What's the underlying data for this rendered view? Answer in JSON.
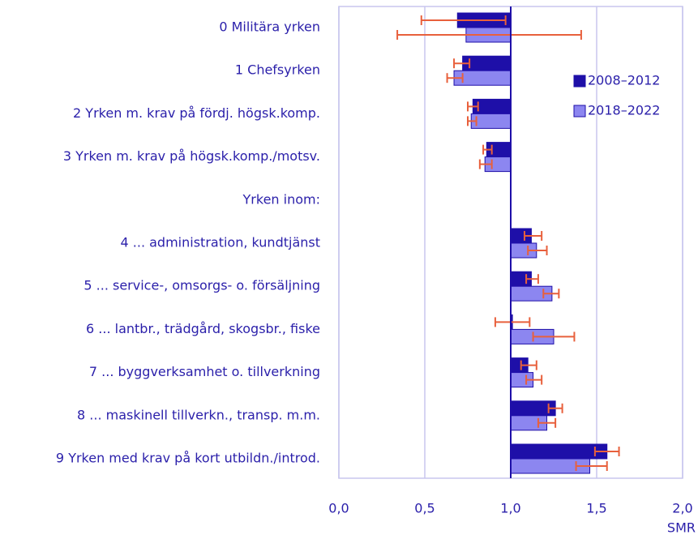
{
  "chart_data": {
    "type": "bar",
    "orientation": "horizontal",
    "base": 1,
    "x_label": "SMR",
    "categories": [
      "0 Militära yrken",
      "1 Chefsyrken",
      "2 Yrken m. krav på fördj. högsk.komp.",
      "3 Yrken m. krav på högsk.komp./motsv.",
      "Yrken inom:",
      "4 ... administration, kundtjänst",
      "5 ... service-, omsorgs- o. försäljning",
      "6 ... lantbr., trädgård, skogsbr.,  fiske",
      "7 ... byggverksamhet o. tillverkning",
      "8 ... maskinell tillverkn., transp. m.m.",
      "9 Yrken med krav på kort utbildn./introd."
    ],
    "series": [
      {
        "name": "2008–2012",
        "color": "#1e0fa8",
        "values": [
          0.69,
          0.72,
          0.78,
          0.86,
          null,
          1.12,
          1.12,
          1.01,
          1.1,
          1.26,
          1.56
        ],
        "ci_low": [
          0.48,
          0.67,
          0.75,
          0.84,
          null,
          1.08,
          1.09,
          0.91,
          1.06,
          1.22,
          1.49
        ],
        "ci_high": [
          0.97,
          0.76,
          0.81,
          0.89,
          null,
          1.18,
          1.16,
          1.11,
          1.15,
          1.3,
          1.63
        ]
      },
      {
        "name": "2018–2022",
        "color": "#8c86f0",
        "values": [
          0.74,
          0.67,
          0.77,
          0.85,
          null,
          1.15,
          1.24,
          1.25,
          1.13,
          1.21,
          1.46
        ],
        "ci_low": [
          0.34,
          0.63,
          0.75,
          0.82,
          null,
          1.1,
          1.19,
          1.13,
          1.09,
          1.16,
          1.38
        ],
        "ci_high": [
          1.41,
          0.72,
          0.8,
          0.89,
          null,
          1.21,
          1.28,
          1.37,
          1.18,
          1.26,
          1.56
        ]
      }
    ],
    "error_color": "#e8603c",
    "xlim": [
      0,
      2
    ],
    "xticks": [
      {
        "value": 0,
        "label": "0,0"
      },
      {
        "value": 0.5,
        "label": "0,5"
      },
      {
        "value": 1,
        "label": "1,0"
      },
      {
        "value": 1.5,
        "label": "1,5"
      },
      {
        "value": 2,
        "label": "2,0"
      }
    ],
    "grid": true,
    "legend": "right"
  }
}
